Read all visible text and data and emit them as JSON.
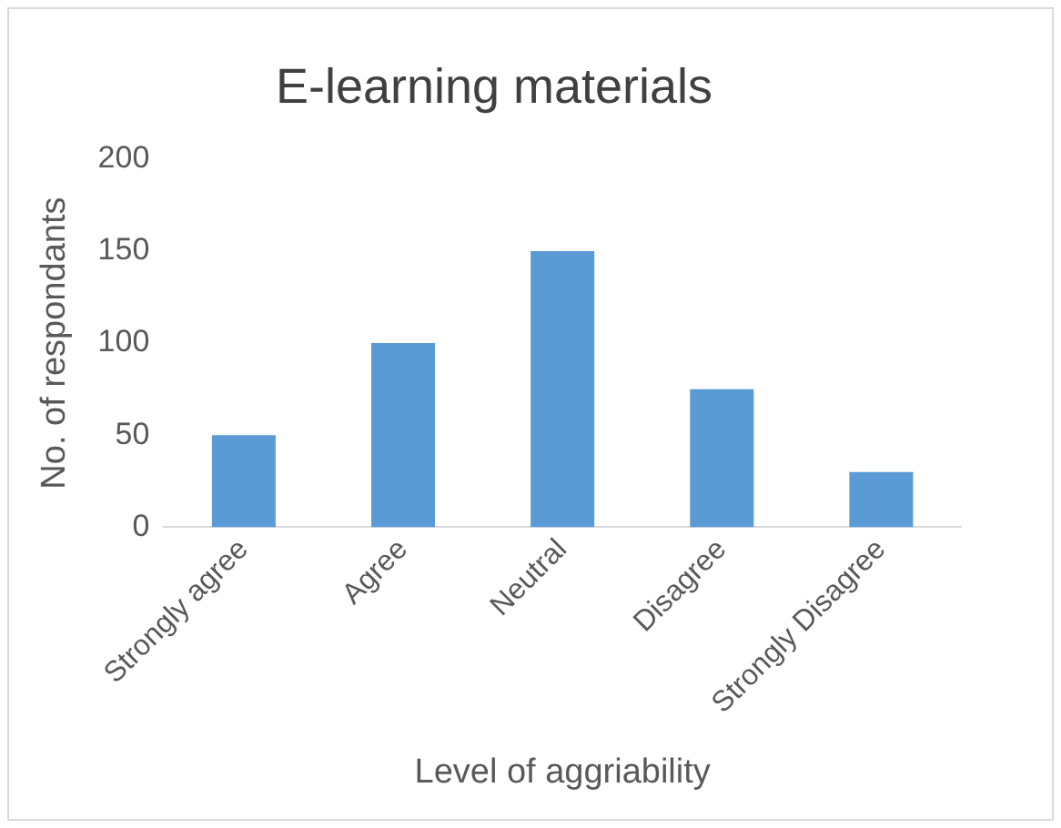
{
  "chart_data": {
    "type": "bar",
    "title": "E-learning materials",
    "xlabel": "Level of aggriability",
    "ylabel": "No. of respondants",
    "categories": [
      "Strongly agree",
      "Agree",
      "Neutral",
      "Disagree",
      "Strongly Disagree"
    ],
    "values": [
      50,
      100,
      150,
      75,
      30
    ],
    "color": "#5b9bd5",
    "ylim": [
      0,
      200
    ],
    "yticks": [
      0,
      50,
      100,
      150,
      200
    ],
    "grid": false,
    "legend": false
  }
}
